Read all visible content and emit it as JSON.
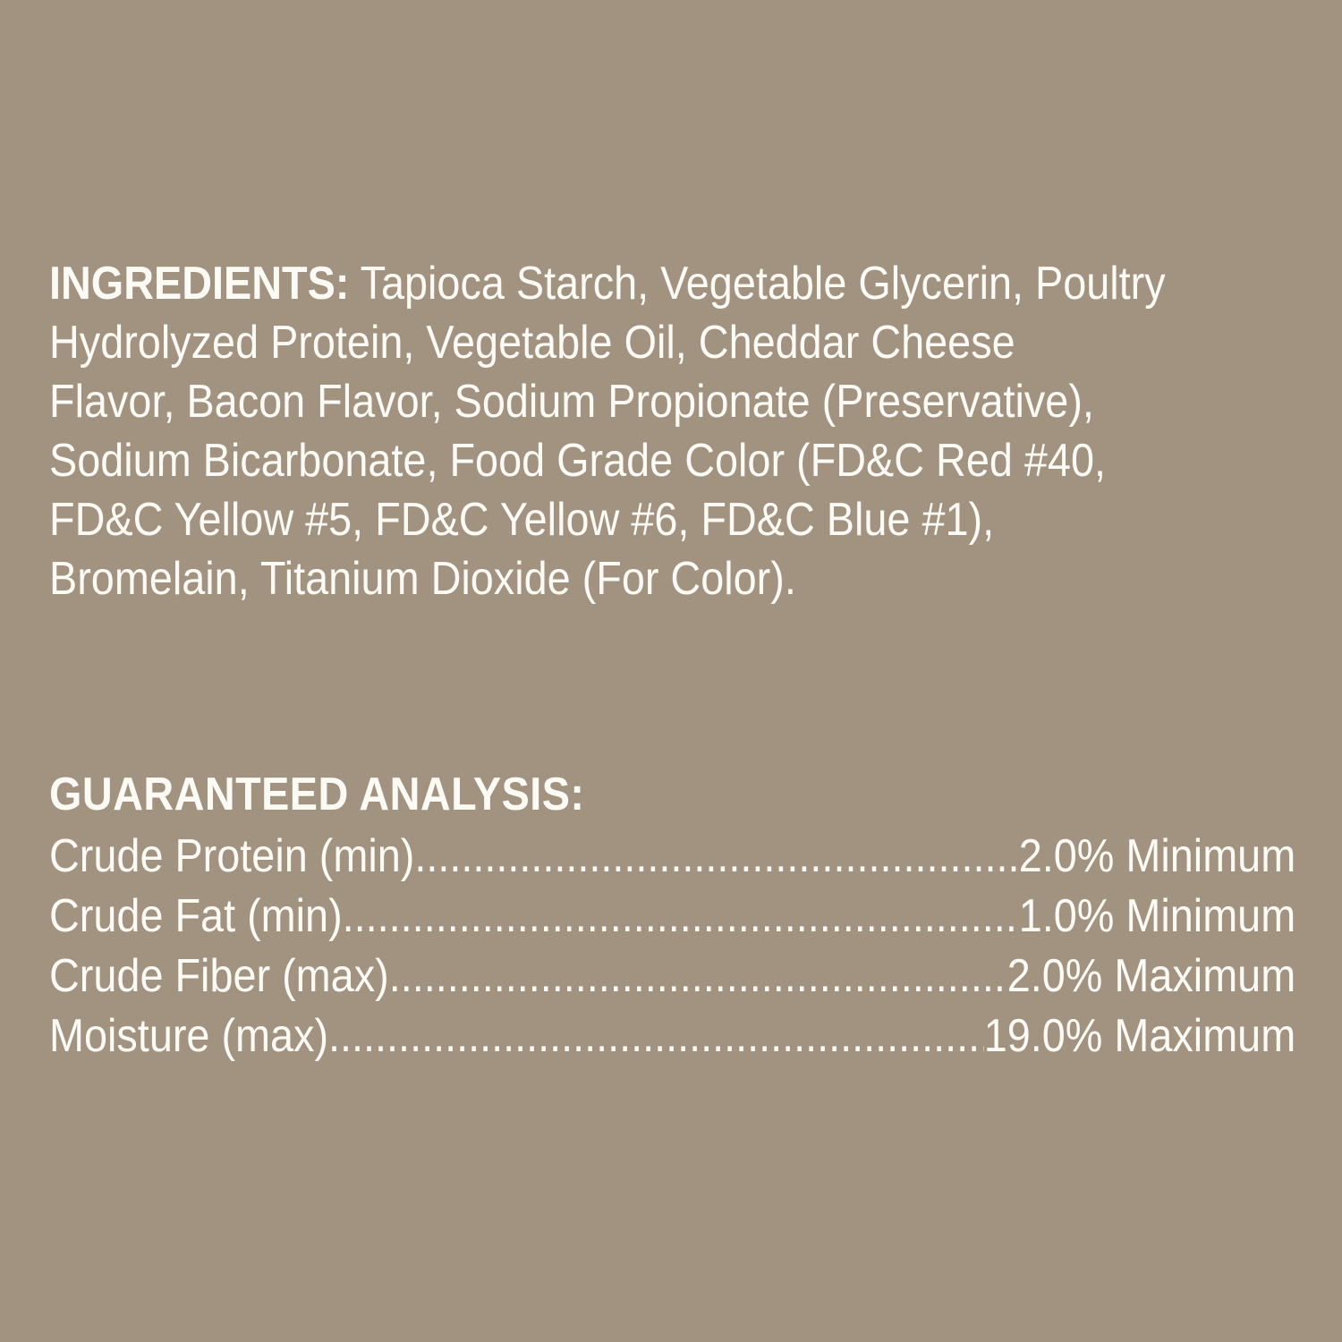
{
  "colors": {
    "background": "#a29381",
    "text": "#fcfaf5"
  },
  "ingredients": {
    "heading": "INGREDIENTS:",
    "line1_rest": " Tapioca Starch, Vegetable Glycerin, Poultry",
    "lines": [
      "Hydrolyzed Protein, Vegetable Oil, Cheddar Cheese",
      "Flavor, Bacon Flavor, Sodium Propionate (Preservative),",
      "Sodium Bicarbonate, Food Grade Color (FD&C Red #40,",
      "FD&C Yellow #5, FD&C Yellow #6, FD&C Blue #1),",
      "Bromelain, Titanium Dioxide (For Color)."
    ],
    "full_text": "INGREDIENTS: Tapioca Starch, Vegetable Glycerin, Poultry Hydrolyzed Protein, Vegetable Oil, Cheddar Cheese Flavor, Bacon Flavor, Sodium Propionate (Preservative), Sodium Bicarbonate, Food Grade Color (FD&C Red #40, FD&C Yellow #5, FD&C Yellow #6, FD&C Blue #1), Bromelain, Titanium Dioxide (For Color)."
  },
  "guaranteed_analysis": {
    "heading": "GUARANTEED ANALYSIS:",
    "rows": [
      {
        "label": "Crude Protein (min)",
        "value": "2.0% Minimum"
      },
      {
        "label": "Crude Fat (min)",
        "value": "1.0% Minimum"
      },
      {
        "label": "Crude Fiber (max)",
        "value": "2.0% Maximum"
      },
      {
        "label": "Moisture (max)",
        "value": "19.0% Maximum"
      }
    ]
  }
}
